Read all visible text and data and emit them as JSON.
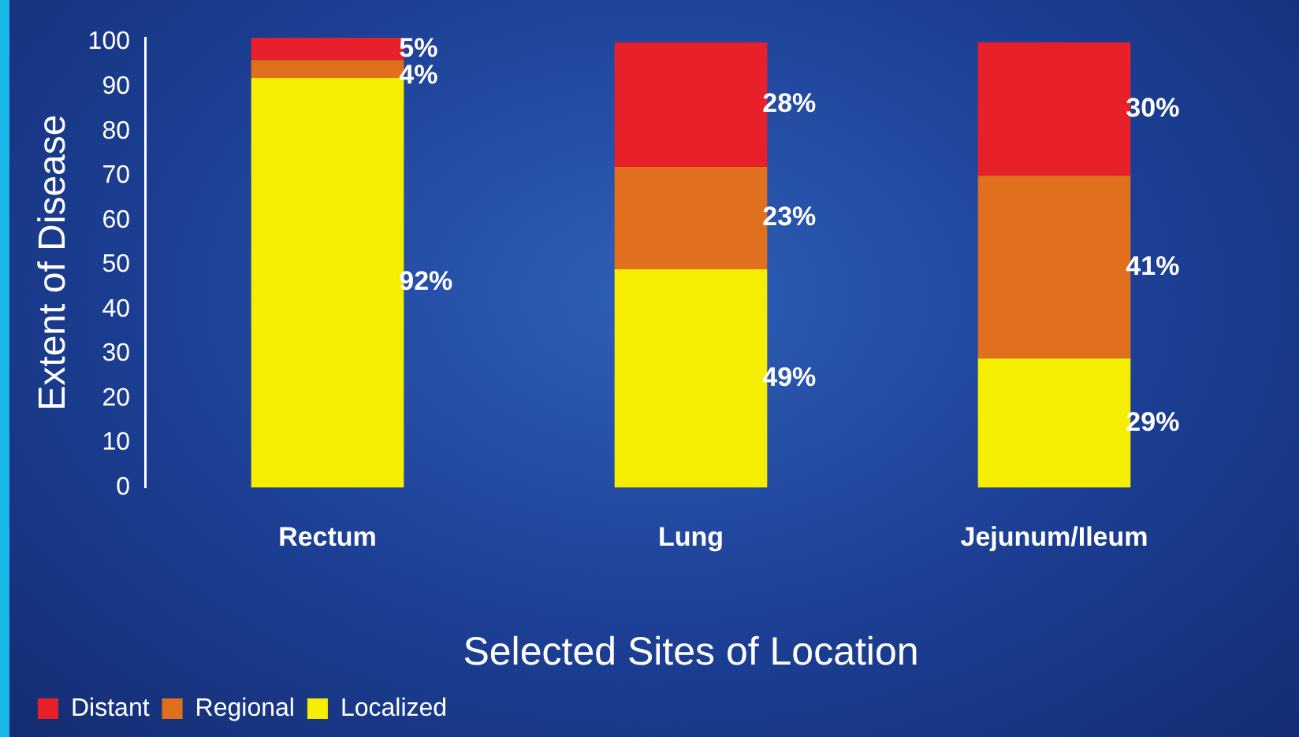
{
  "chart_data": {
    "type": "bar",
    "stacked": true,
    "xlabel": "Selected Sites of Location",
    "ylabel": "Extent of Disease",
    "categories": [
      "Rectum",
      "Lung",
      "Jejunum/Ileum"
    ],
    "series": [
      {
        "name": "Localized",
        "color": "#f5ee00",
        "values": [
          92,
          49,
          29
        ],
        "value_labels": [
          "92%",
          "49%",
          "29%"
        ]
      },
      {
        "name": "Regional",
        "color": "#e0701e",
        "values": [
          4,
          23,
          41
        ],
        "value_labels": [
          "4%",
          "23%",
          "41%"
        ]
      },
      {
        "name": "Distant",
        "color": "#e8202a",
        "values": [
          5,
          28,
          30
        ],
        "value_labels": [
          "5%",
          "28%",
          "30%"
        ]
      }
    ],
    "ylim": [
      0,
      101
    ],
    "yticks": [
      0,
      10,
      20,
      30,
      40,
      50,
      60,
      70,
      80,
      90,
      100
    ],
    "grid": false,
    "legend": "bottom left"
  }
}
